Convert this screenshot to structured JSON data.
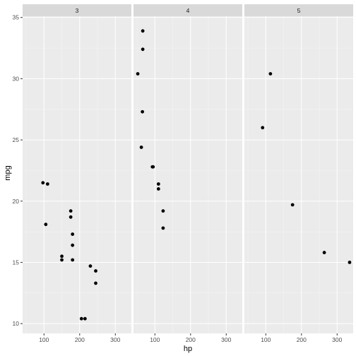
{
  "chart_data": {
    "type": "scatter",
    "facet_variable": "gear",
    "xlabel": "hp",
    "ylabel": "mpg",
    "xlim": [
      40,
      345
    ],
    "ylim": [
      9.2,
      35.1
    ],
    "x_ticks": [
      100,
      200,
      300
    ],
    "y_ticks": [
      10,
      15,
      20,
      25,
      30,
      35
    ],
    "grid": true,
    "colors": {
      "panel_bg": "#ebebeb",
      "strip_bg": "#d9d9d9",
      "grid_major": "#ffffff",
      "point": "#000000"
    },
    "panels": [
      {
        "label": "3",
        "points": [
          {
            "x": 97,
            "y": 21.5
          },
          {
            "x": 110,
            "y": 21.4
          },
          {
            "x": 105,
            "y": 18.1
          },
          {
            "x": 175,
            "y": 19.2
          },
          {
            "x": 175,
            "y": 18.7
          },
          {
            "x": 180,
            "y": 17.3
          },
          {
            "x": 180,
            "y": 16.4
          },
          {
            "x": 180,
            "y": 15.2
          },
          {
            "x": 150,
            "y": 15.5
          },
          {
            "x": 150,
            "y": 15.2
          },
          {
            "x": 230,
            "y": 14.7
          },
          {
            "x": 245,
            "y": 14.3
          },
          {
            "x": 245,
            "y": 13.3
          },
          {
            "x": 205,
            "y": 10.4
          },
          {
            "x": 215,
            "y": 10.4
          }
        ]
      },
      {
        "label": "4",
        "points": [
          {
            "x": 66,
            "y": 33.9
          },
          {
            "x": 66,
            "y": 32.4
          },
          {
            "x": 52,
            "y": 30.4
          },
          {
            "x": 65,
            "y": 27.3
          },
          {
            "x": 62,
            "y": 24.4
          },
          {
            "x": 93,
            "y": 22.8
          },
          {
            "x": 95,
            "y": 22.8
          },
          {
            "x": 110,
            "y": 21.4
          },
          {
            "x": 110,
            "y": 21.0
          },
          {
            "x": 123,
            "y": 19.2
          },
          {
            "x": 123,
            "y": 17.8
          }
        ]
      },
      {
        "label": "5",
        "points": [
          {
            "x": 113,
            "y": 30.4
          },
          {
            "x": 91,
            "y": 26.0
          },
          {
            "x": 175,
            "y": 19.7
          },
          {
            "x": 264,
            "y": 15.8
          },
          {
            "x": 335,
            "y": 15.0
          }
        ]
      }
    ]
  }
}
